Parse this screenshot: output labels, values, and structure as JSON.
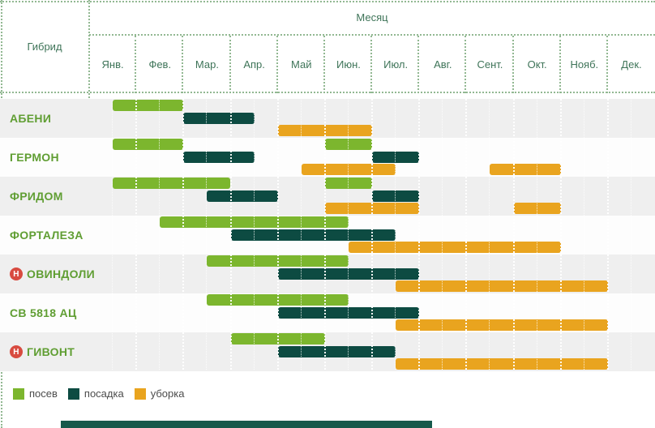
{
  "header": {
    "month_label": "Месяц",
    "hybrid_label": "Гибрид",
    "months": [
      "Янв.",
      "Фев.",
      "Мар.",
      "Апр.",
      "Май",
      "Июн.",
      "Июл.",
      "Авг.",
      "Сент.",
      "Окт.",
      "Нояб.",
      "Дек."
    ]
  },
  "legend": [
    {
      "label": "посев",
      "color": "#7cb62e"
    },
    {
      "label": "посадка",
      "color": "#0d4b42"
    },
    {
      "label": "уборка",
      "color": "#e9a41f"
    }
  ],
  "colors": {
    "sow": "#7cb62e",
    "plant": "#0d4b42",
    "harvest": "#e9a41f",
    "band_dark": "#efefef",
    "band_light": "#fdfdfd",
    "row_label": "#609e33",
    "header_text": "#3e7458",
    "badge": "#d84b40",
    "footer": "#16594b"
  },
  "chart_data": {
    "type": "gantt",
    "title": "",
    "x_axis": "Месяц",
    "y_axis": "Гибрид",
    "x_unit_note": "months, 0 = start of January, 12 = end of December",
    "categories": [
      "Янв.",
      "Фев.",
      "Мар.",
      "Апр.",
      "Май",
      "Июн.",
      "Июл.",
      "Авг.",
      "Сент.",
      "Окт.",
      "Нояб.",
      "Дек."
    ],
    "activities": [
      "посев",
      "посадка",
      "уборка"
    ],
    "rows": [
      {
        "name": "АБЕНИ",
        "badge": null,
        "sow": [
          [
            0.5,
            2.0
          ]
        ],
        "plant": [
          [
            2.0,
            3.5
          ]
        ],
        "harvest": [
          [
            4.0,
            6.0
          ]
        ]
      },
      {
        "name": "ГЕРМОН",
        "badge": null,
        "sow": [
          [
            0.5,
            2.0
          ],
          [
            5.0,
            6.0
          ]
        ],
        "plant": [
          [
            2.0,
            3.5
          ],
          [
            6.0,
            7.0
          ]
        ],
        "harvest": [
          [
            4.5,
            6.5
          ],
          [
            8.5,
            10.0
          ]
        ]
      },
      {
        "name": "ФРИДОМ",
        "badge": null,
        "sow": [
          [
            0.5,
            3.0
          ],
          [
            5.0,
            6.0
          ]
        ],
        "plant": [
          [
            2.5,
            4.0
          ],
          [
            6.0,
            7.0
          ]
        ],
        "harvest": [
          [
            5.0,
            7.0
          ],
          [
            9.0,
            10.0
          ]
        ]
      },
      {
        "name": "ФОРТАЛЕЗА",
        "badge": null,
        "sow": [
          [
            1.5,
            5.5
          ]
        ],
        "plant": [
          [
            3.0,
            6.5
          ]
        ],
        "harvest": [
          [
            5.5,
            10.0
          ]
        ]
      },
      {
        "name": "ОВИНДОЛИ",
        "badge": "Н",
        "sow": [
          [
            2.5,
            5.5
          ]
        ],
        "plant": [
          [
            4.0,
            7.0
          ]
        ],
        "harvest": [
          [
            6.5,
            11.0
          ]
        ]
      },
      {
        "name": "СВ 5818 АЦ",
        "badge": null,
        "sow": [
          [
            2.5,
            5.5
          ]
        ],
        "plant": [
          [
            4.0,
            7.0
          ]
        ],
        "harvest": [
          [
            6.5,
            11.0
          ]
        ]
      },
      {
        "name": "ГИВОНТ",
        "badge": "Н",
        "sow": [
          [
            3.0,
            5.0
          ]
        ],
        "plant": [
          [
            4.0,
            6.5
          ]
        ],
        "harvest": [
          [
            6.5,
            11.0
          ]
        ]
      }
    ]
  }
}
